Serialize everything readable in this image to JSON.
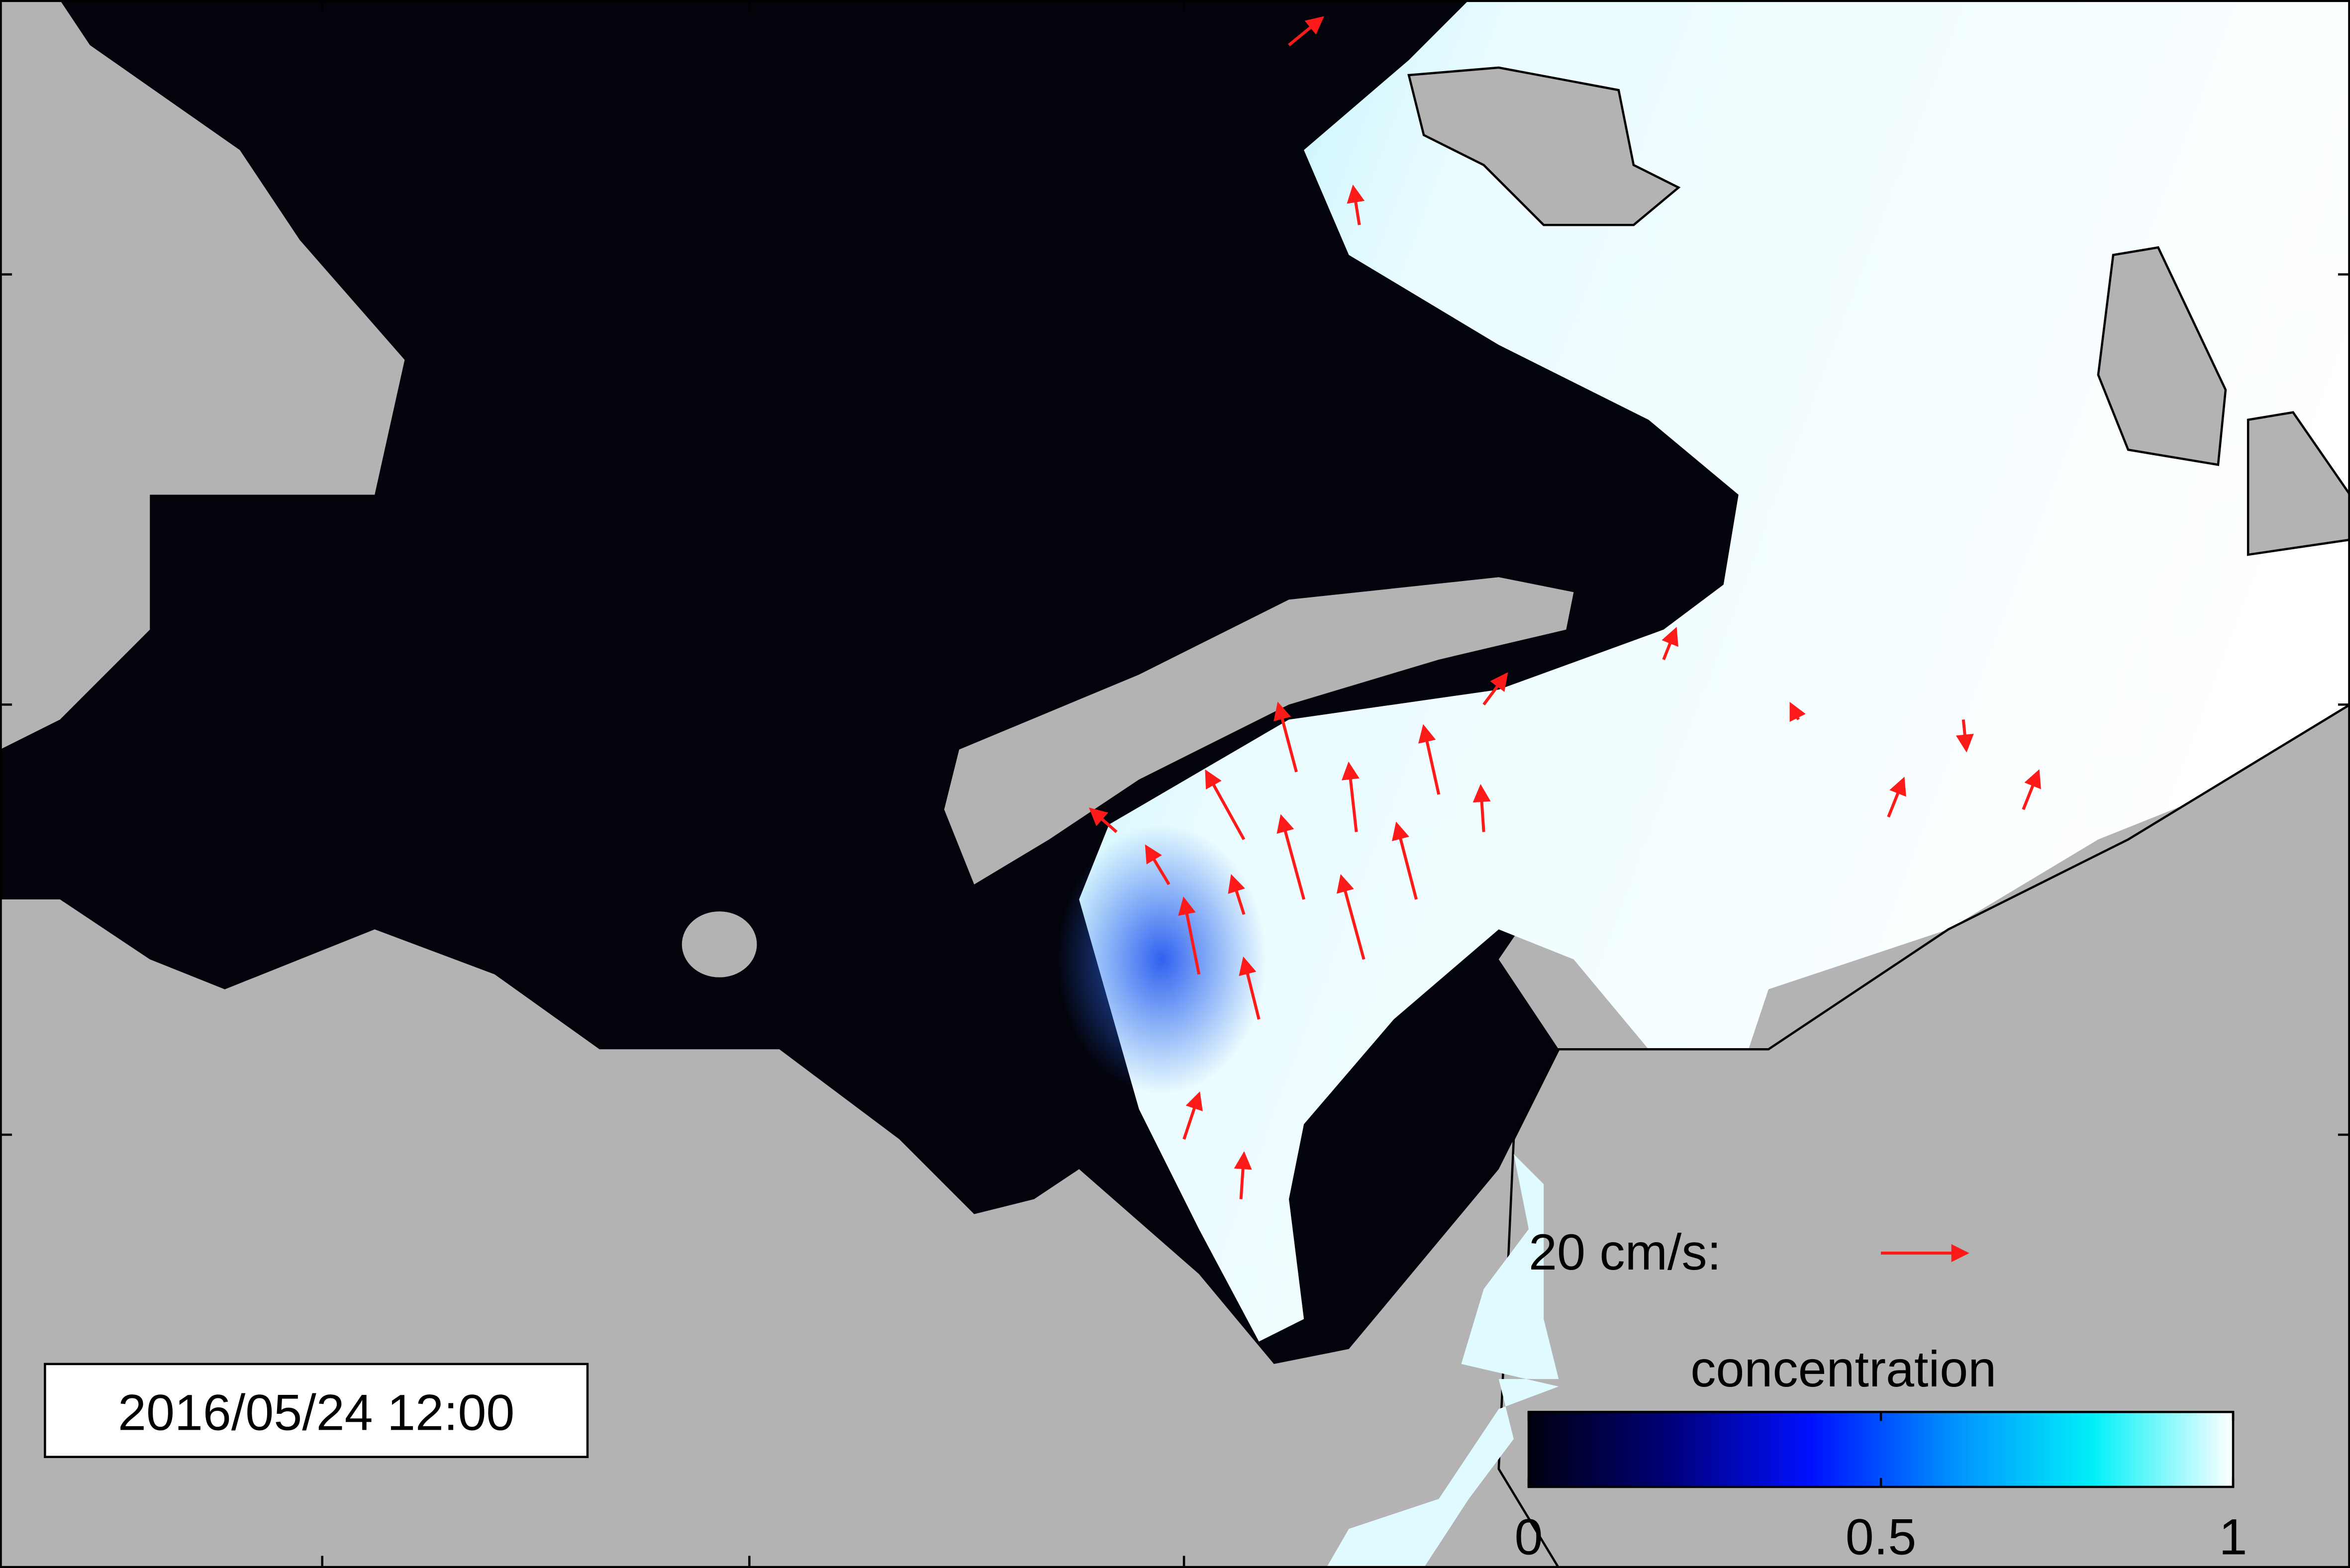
{
  "timestamp": "2016/05/24 12:00",
  "vector_legend": {
    "label": "20 cm/s:"
  },
  "colorbar": {
    "title": "concentration",
    "lim": [
      0,
      1
    ],
    "ticks": [
      0,
      0.5,
      1
    ]
  }
}
